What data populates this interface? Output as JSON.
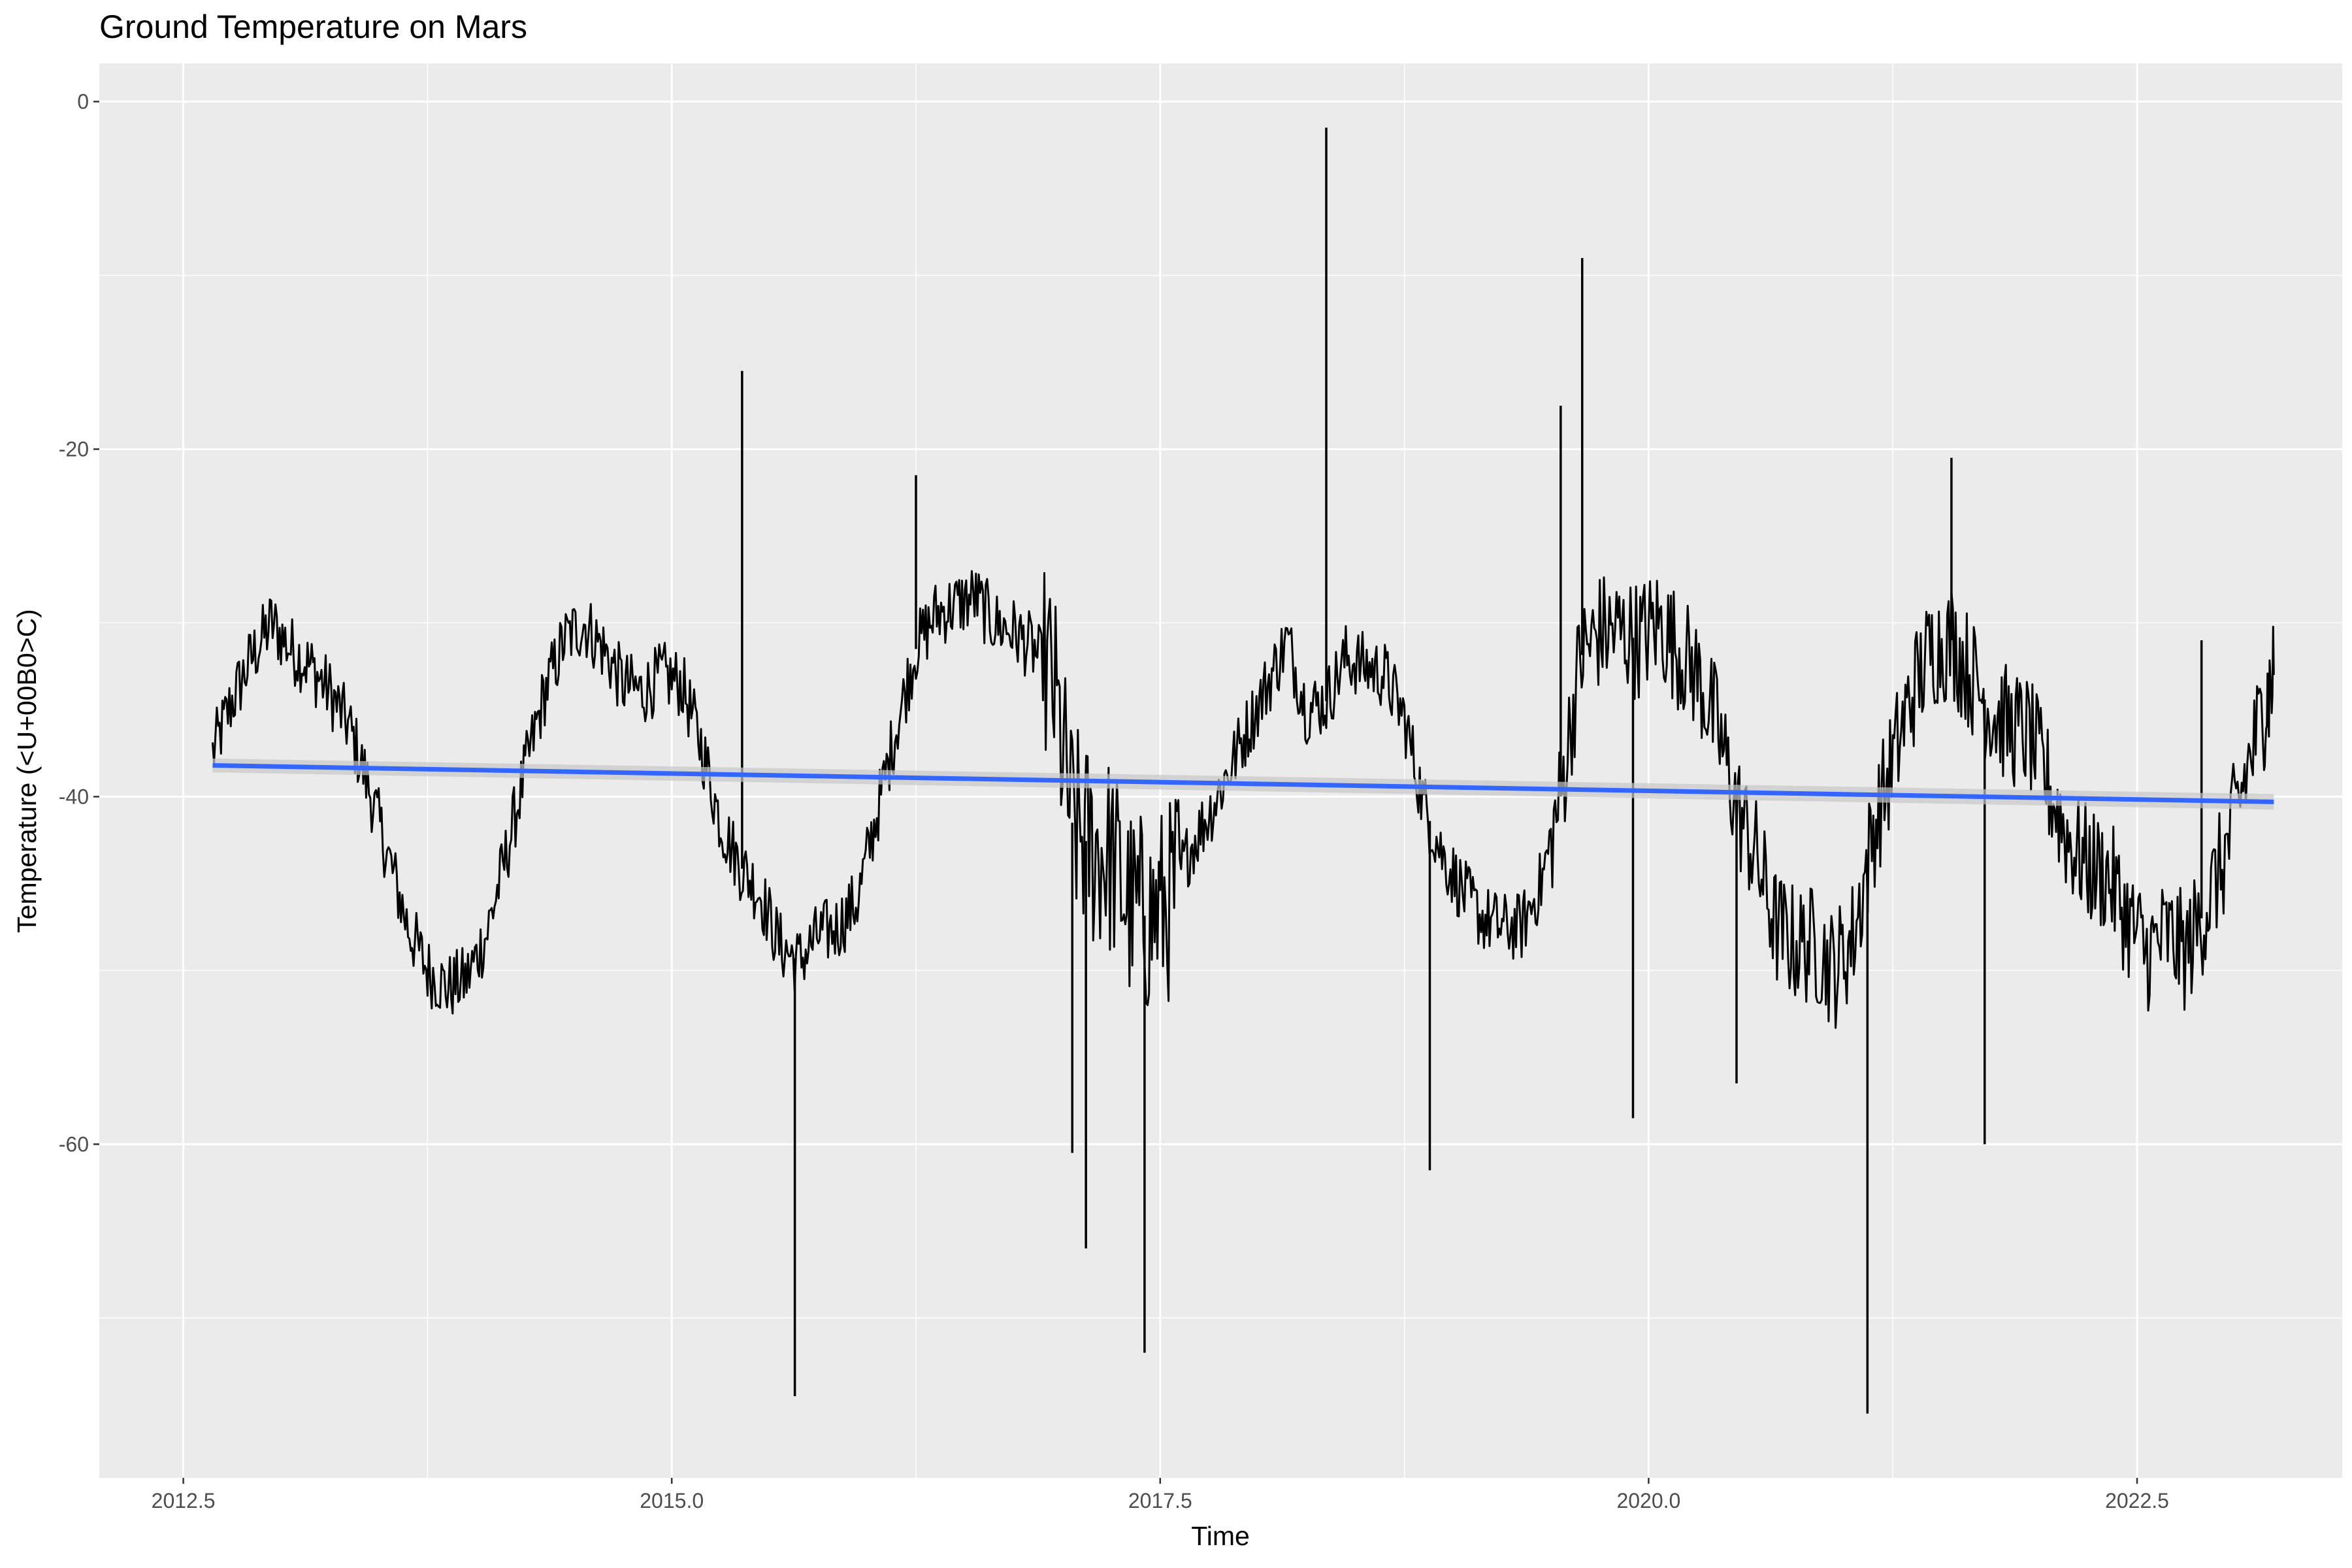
{
  "chart_data": {
    "type": "line",
    "title": "Ground Temperature on Mars",
    "xlabel": "Time",
    "ylabel": "Temperature (<U+00B0>C)",
    "xlim": [
      2012.07,
      2023.55
    ],
    "ylim": [
      -79.2,
      2.2
    ],
    "x_ticks": [
      2012.5,
      2015.0,
      2017.5,
      2020.0,
      2022.5
    ],
    "x_tick_labels": [
      "2012.5",
      "2015.0",
      "2017.5",
      "2020.0",
      "2022.5"
    ],
    "y_ticks": [
      0,
      -20,
      -40,
      -60
    ],
    "y_tick_labels": [
      "0",
      "-20",
      "-40",
      "-60"
    ],
    "grid": true,
    "panel_background": "#ebebeb",
    "grid_color": "#ffffff",
    "series": [
      {
        "kind": "line",
        "color": "#000000",
        "x": [
          2012.65,
          2012.75,
          2012.85,
          2012.95,
          2013.05,
          2013.15,
          2013.25,
          2013.35,
          2013.45,
          2013.55,
          2013.65,
          2013.75,
          2013.85,
          2013.95,
          2014.05,
          2014.15,
          2014.25,
          2014.35,
          2014.45,
          2014.55,
          2014.65,
          2014.75,
          2014.85,
          2014.95,
          2015.05,
          2015.15,
          2015.25,
          2015.35,
          2015.45,
          2015.55,
          2015.65,
          2015.75,
          2015.85,
          2015.95,
          2016.05,
          2016.15,
          2016.25,
          2016.35,
          2016.45,
          2016.55,
          2016.65,
          2016.75,
          2016.85,
          2016.95,
          2017.05,
          2017.15,
          2017.25,
          2017.35,
          2017.45,
          2017.55,
          2017.65,
          2017.75,
          2017.85,
          2017.95,
          2018.05,
          2018.15,
          2018.25,
          2018.35,
          2018.45,
          2018.55,
          2018.65,
          2018.75,
          2018.85,
          2018.95,
          2019.05,
          2019.15,
          2019.25,
          2019.35,
          2019.45,
          2019.55,
          2019.65,
          2019.75,
          2019.85,
          2019.95,
          2020.05,
          2020.15,
          2020.25,
          2020.35,
          2020.45,
          2020.55,
          2020.65,
          2020.75,
          2020.85,
          2020.95,
          2021.05,
          2021.15,
          2021.25,
          2021.35,
          2021.45,
          2021.55,
          2021.65,
          2021.75,
          2021.85,
          2021.95,
          2022.05,
          2022.15,
          2022.25,
          2022.35,
          2022.45,
          2022.55,
          2022.65,
          2022.75,
          2022.85,
          2022.95,
          2023.05,
          2023.15,
          2023.2
        ],
        "y": [
          -37.5,
          -34.5,
          -32.0,
          -30.0,
          -31.5,
          -32.5,
          -34.0,
          -36.0,
          -39.5,
          -43.5,
          -47.5,
          -50.0,
          -51.0,
          -50.5,
          -48.0,
          -43.5,
          -38.5,
          -34.0,
          -31.0,
          -30.0,
          -31.5,
          -33.5,
          -34.0,
          -33.0,
          -33.5,
          -37.0,
          -41.5,
          -44.0,
          -45.5,
          -48.5,
          -49.5,
          -48.0,
          -47.5,
          -46.0,
          -41.0,
          -36.0,
          -31.5,
          -29.5,
          -29.0,
          -28.5,
          -30.0,
          -30.5,
          -31.5,
          -33.5,
          -41.5,
          -43.0,
          -43.5,
          -46.5,
          -47.0,
          -46.0,
          -43.0,
          -41.0,
          -38.5,
          -36.0,
          -33.5,
          -31.0,
          -35.0,
          -34.5,
          -32.0,
          -32.5,
          -33.0,
          -35.5,
          -40.5,
          -43.5,
          -45.5,
          -47.0,
          -47.5,
          -47.5,
          -45.0,
          -40.0,
          -32.0,
          -30.5,
          -30.5,
          -31.0,
          -30.0,
          -31.5,
          -33.0,
          -36.0,
          -40.5,
          -43.5,
          -47.5,
          -48.5,
          -48.5,
          -50.0,
          -48.0,
          -42.0,
          -38.0,
          -34.0,
          -31.5,
          -31.0,
          -33.0,
          -35.0,
          -36.0,
          -36.5,
          -39.5,
          -42.5,
          -44.0,
          -44.5,
          -47.0,
          -49.0,
          -48.0,
          -49.0,
          -46.5,
          -43.5,
          -39.0,
          -35.0,
          -33.0
        ],
        "spikes": [
          {
            "x": 2015.36,
            "y": -15.5
          },
          {
            "x": 2015.63,
            "y": -74.5
          },
          {
            "x": 2016.25,
            "y": -21.5
          },
          {
            "x": 2017.05,
            "y": -60.5
          },
          {
            "x": 2017.12,
            "y": -66.0
          },
          {
            "x": 2017.42,
            "y": -72.0
          },
          {
            "x": 2018.35,
            "y": -1.5
          },
          {
            "x": 2018.88,
            "y": -61.5
          },
          {
            "x": 2019.55,
            "y": -17.5
          },
          {
            "x": 2019.66,
            "y": -9.0
          },
          {
            "x": 2019.92,
            "y": -58.5
          },
          {
            "x": 2020.45,
            "y": -56.5
          },
          {
            "x": 2021.12,
            "y": -75.5
          },
          {
            "x": 2021.55,
            "y": -20.5
          },
          {
            "x": 2021.72,
            "y": -60.0
          },
          {
            "x": 2022.83,
            "y": -31.0
          }
        ]
      },
      {
        "kind": "smooth",
        "method": "linear",
        "color": "#3366ff",
        "band_color": "#c8c8c8",
        "x": [
          2012.65,
          2023.2
        ],
        "y": [
          -38.2,
          -40.3
        ],
        "band": [
          0.4,
          0.45
        ]
      }
    ]
  }
}
